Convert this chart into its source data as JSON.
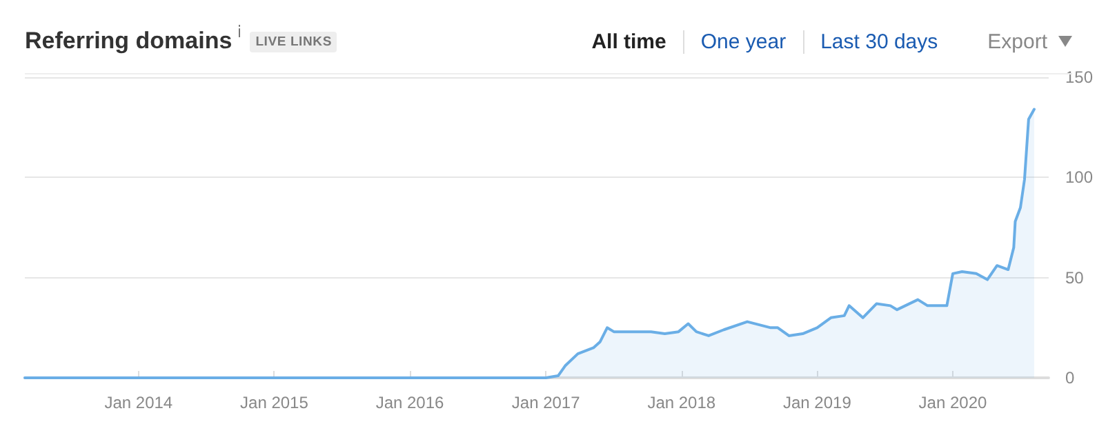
{
  "chart_data": {
    "type": "area",
    "title": "Referring domains",
    "subtitle": "LIVE LINKS",
    "annotations": [
      "All time",
      "One year",
      "Last 30 days",
      "Export"
    ],
    "series": [
      {
        "color": "#6aaee6",
        "x": [
          "2013-03-01",
          "2016-12-20",
          "2017-01-01",
          "2017-02-03",
          "2017-02-22",
          "2017-03-28",
          "2017-05-09",
          "2017-05-27",
          "2017-06-15",
          "2017-07-03",
          "2017-09-15",
          "2017-10-11",
          "2017-11-17",
          "2017-12-24",
          "2018-01-19",
          "2018-02-10",
          "2018-03-15",
          "2018-04-25",
          "2018-06-27",
          "2018-08-29",
          "2018-09-17",
          "2018-10-17",
          "2018-11-23",
          "2019-01-01",
          "2019-02-07",
          "2019-03-15",
          "2019-03-28",
          "2019-05-04",
          "2019-06-10",
          "2019-07-17",
          "2019-08-04",
          "2019-09-29",
          "2019-10-25",
          "2019-12-16",
          "2020-01-01",
          "2020-01-26",
          "2020-03-04",
          "2020-04-03",
          "2020-04-29",
          "2020-05-29",
          "2020-06-13",
          "2020-06-17",
          "2020-07-01",
          "2020-07-12",
          "2020-07-23",
          "2020-08-07"
        ],
        "values": [
          0,
          0,
          0,
          1,
          6,
          12,
          15,
          18,
          25,
          23,
          23,
          23,
          22,
          23,
          27,
          23,
          21,
          24,
          28,
          25,
          25,
          21,
          22,
          25,
          30,
          31,
          36,
          30,
          37,
          36,
          34,
          39,
          36,
          36,
          52,
          53,
          52,
          49,
          56,
          54,
          65,
          78,
          85,
          99,
          129,
          134
        ]
      }
    ],
    "xlim": [
      "2013-03-01",
      "2020-09-15"
    ],
    "xticks": [
      {
        "value": "2014-01-01",
        "label": "Jan 2014"
      },
      {
        "value": "2015-01-01",
        "label": "Jan 2015"
      },
      {
        "value": "2016-01-01",
        "label": "Jan 2016"
      },
      {
        "value": "2017-01-01",
        "label": "Jan 2017"
      },
      {
        "value": "2018-01-01",
        "label": "Jan 2018"
      },
      {
        "value": "2019-01-01",
        "label": "Jan 2019"
      },
      {
        "value": "2020-01-01",
        "label": "Jan 2020"
      }
    ],
    "ylim": [
      0,
      150
    ],
    "yticks": [
      0,
      50,
      100,
      150
    ],
    "grid": "y",
    "marker": "none",
    "line_style": "solid"
  }
}
